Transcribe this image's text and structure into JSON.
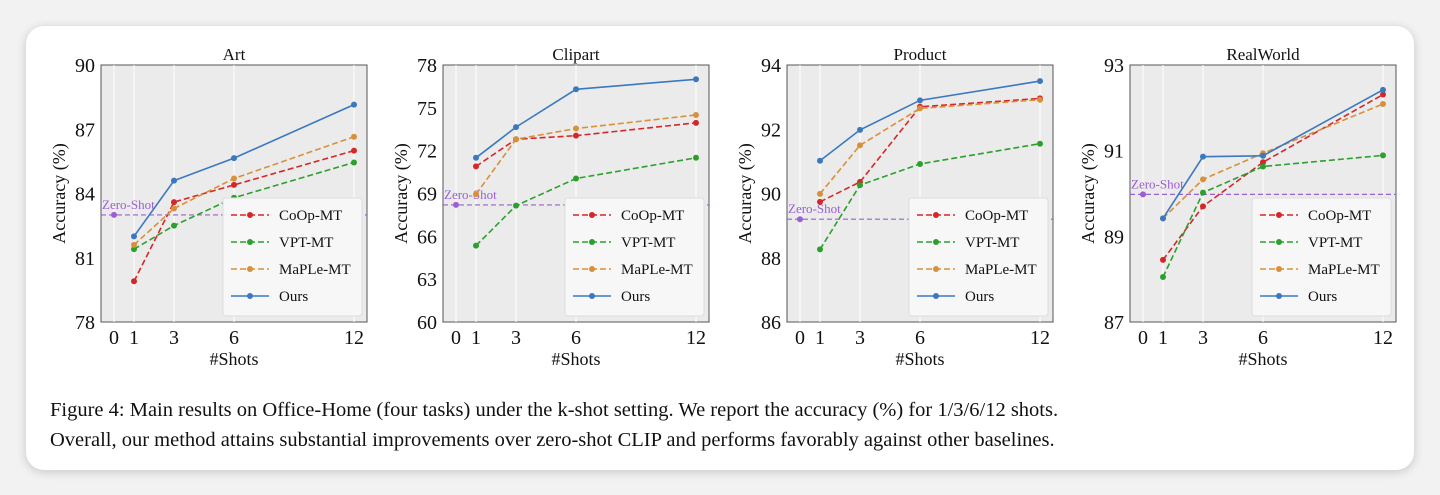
{
  "caption": {
    "line1": "Figure 4: Main results on Office-Home (four tasks) under the k-shot setting. We report the accuracy (%) for 1/3/6/12 shots.",
    "line2": "Overall, our method attains substantial improvements over zero-shot CLIP and performs favorably against other baselines."
  },
  "colors": {
    "CoOp-MT": "#d62728",
    "VPT-MT": "#2ca02c",
    "MaPLe-MT": "#d8903a",
    "Ours": "#3a78c0",
    "Zero-Shot": "#9b5fd0",
    "axes_bg": "#ebebeb"
  },
  "chart_data": [
    {
      "type": "line",
      "title": "Art",
      "xlabel": "#Shots",
      "ylabel": "Accuracy (%)",
      "x": [
        1,
        3,
        6,
        12
      ],
      "xticks": [
        0,
        1,
        3,
        6,
        12
      ],
      "ylim": [
        78,
        90
      ],
      "yticks": [
        78,
        81,
        84,
        87,
        90
      ],
      "grid": true,
      "legend": "lower-right",
      "zero_shot": {
        "label": "Zero-Shot",
        "x": 0,
        "value": 83.0
      },
      "series": [
        {
          "name": "CoOp-MT",
          "style": "dashed",
          "values": [
            79.9,
            83.6,
            84.4,
            86.0
          ]
        },
        {
          "name": "VPT-MT",
          "style": "dashed",
          "values": [
            81.4,
            82.5,
            83.8,
            85.45
          ]
        },
        {
          "name": "MaPLe-MT",
          "style": "dashed",
          "values": [
            81.6,
            83.3,
            84.7,
            86.65
          ]
        },
        {
          "name": "Ours",
          "style": "solid",
          "values": [
            82.0,
            84.6,
            85.65,
            88.15
          ]
        }
      ]
    },
    {
      "type": "line",
      "title": "Clipart",
      "xlabel": "#Shots",
      "ylabel": "Accuracy (%)",
      "x": [
        1,
        3,
        6,
        12
      ],
      "xticks": [
        0,
        1,
        3,
        6,
        12
      ],
      "ylim": [
        60,
        78
      ],
      "yticks": [
        60,
        63,
        66,
        69,
        72,
        75,
        78
      ],
      "grid": true,
      "legend": "lower-right",
      "zero_shot": {
        "label": "Zero-Shot",
        "x": 0,
        "value": 68.2
      },
      "series": [
        {
          "name": "CoOp-MT",
          "style": "dashed",
          "values": [
            70.9,
            72.8,
            73.05,
            73.95
          ]
        },
        {
          "name": "VPT-MT",
          "style": "dashed",
          "values": [
            65.35,
            68.15,
            70.05,
            71.5
          ]
        },
        {
          "name": "MaPLe-MT",
          "style": "dashed",
          "values": [
            68.95,
            72.8,
            73.55,
            74.5
          ]
        },
        {
          "name": "Ours",
          "style": "solid",
          "values": [
            71.5,
            73.65,
            76.3,
            77.0
          ]
        }
      ]
    },
    {
      "type": "line",
      "title": "Product",
      "xlabel": "#Shots",
      "ylabel": "Accuracy (%)",
      "x": [
        1,
        3,
        6,
        12
      ],
      "xticks": [
        0,
        1,
        3,
        6,
        12
      ],
      "ylim": [
        86,
        94
      ],
      "yticks": [
        86,
        88,
        90,
        92,
        94
      ],
      "grid": true,
      "legend": "lower-right",
      "zero_shot": {
        "label": "Zero-Shot",
        "x": 0,
        "value": 89.2
      },
      "series": [
        {
          "name": "CoOp-MT",
          "style": "dashed",
          "values": [
            89.74,
            90.36,
            92.7,
            92.96
          ]
        },
        {
          "name": "VPT-MT",
          "style": "dashed",
          "values": [
            88.26,
            90.26,
            90.92,
            91.55
          ]
        },
        {
          "name": "MaPLe-MT",
          "style": "dashed",
          "values": [
            89.99,
            91.5,
            92.65,
            92.92
          ]
        },
        {
          "name": "Ours",
          "style": "solid",
          "values": [
            91.02,
            91.98,
            92.9,
            93.5
          ]
        }
      ]
    },
    {
      "type": "line",
      "title": "RealWorld",
      "xlabel": "#Shots",
      "ylabel": "Accuracy (%)",
      "x": [
        1,
        3,
        6,
        12
      ],
      "xticks": [
        0,
        1,
        3,
        6,
        12
      ],
      "ylim": [
        87,
        93
      ],
      "yticks": [
        87,
        89,
        91,
        93
      ],
      "grid": true,
      "legend": "lower-right",
      "zero_shot": {
        "label": "Zero-Shot",
        "x": 0,
        "value": 89.98
      },
      "series": [
        {
          "name": "CoOp-MT",
          "style": "dashed",
          "values": [
            88.45,
            89.7,
            90.73,
            92.31
          ]
        },
        {
          "name": "VPT-MT",
          "style": "dashed",
          "values": [
            88.05,
            90.02,
            90.63,
            90.89
          ]
        },
        {
          "name": "MaPLe-MT",
          "style": "dashed",
          "values": [
            89.42,
            90.33,
            90.94,
            92.09
          ]
        },
        {
          "name": "Ours",
          "style": "solid",
          "values": [
            89.42,
            90.86,
            90.88,
            92.42
          ]
        }
      ]
    }
  ]
}
